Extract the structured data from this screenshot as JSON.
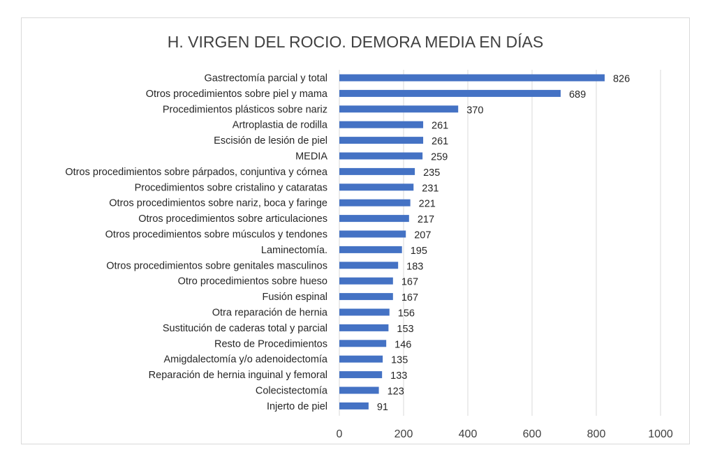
{
  "chart_data": {
    "type": "bar",
    "orientation": "horizontal",
    "title": "H. VIRGEN DEL ROCIO. DEMORA MEDIA EN DÍAS",
    "xlabel": "",
    "ylabel": "",
    "xlim": [
      0,
      1000
    ],
    "xticks": [
      "0",
      "200",
      "400",
      "600",
      "800",
      "1000"
    ],
    "grid": true,
    "bar_color": "#4472c4",
    "categories": [
      "Gastrectomía parcial y total",
      "Otros procedimientos sobre piel y mama",
      "Procedimientos plásticos sobre nariz",
      "Artroplastia de rodilla",
      "Escisión de lesión de piel",
      "MEDIA",
      "Otros procedimientos sobre párpados, conjuntiva y córnea",
      "Procedimientos sobre cristalino y cataratas",
      "Otros procedimientos sobre nariz, boca y faringe",
      "Otros procedimientos sobre articulaciones",
      "Otros procedimientos sobre músculos y tendones",
      "Laminectomía.",
      "Otros procedimientos  sobre genitales masculinos",
      "Otro procedimientos sobre hueso",
      "Fusión espinal",
      "Otra reparación de hernia",
      "Sustitución de caderas total y parcial",
      "Resto de Procedimientos",
      "Amigdalectomía y/o adenoidectomía",
      "Reparación de hernia inguinal y femoral",
      "Colecistectomía",
      "Injerto de piel"
    ],
    "values": [
      826,
      689,
      370,
      261,
      261,
      259,
      235,
      231,
      221,
      217,
      207,
      195,
      183,
      167,
      167,
      156,
      153,
      146,
      135,
      133,
      123,
      91
    ],
    "value_labels": [
      "826",
      "689",
      "370",
      "261",
      "261",
      "259",
      "235",
      "231",
      "221",
      "217",
      "207",
      "195",
      "183",
      "167",
      "167",
      "156",
      "153",
      "146",
      "135",
      "133",
      "123",
      "91"
    ]
  }
}
